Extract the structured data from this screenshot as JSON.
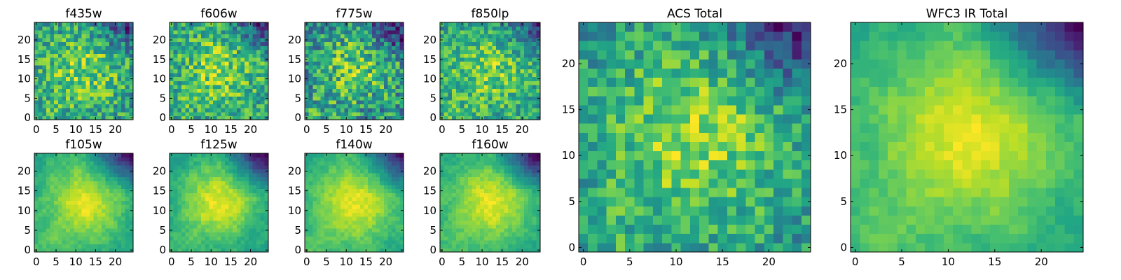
{
  "colormap": "viridis",
  "chart_data": [
    {
      "type": "heatmap",
      "title": "f435w",
      "image_size": 25,
      "x_ticks": [
        0,
        5,
        10,
        15,
        20
      ],
      "y_ticks": [
        0,
        5,
        10,
        15,
        20
      ],
      "xlim": [
        -0.5,
        24.5
      ],
      "ylim": [
        -0.5,
        24.5
      ],
      "texture": "noisy",
      "note_features": "uniform noisy field, scattered dark pixels"
    },
    {
      "type": "heatmap",
      "title": "f606w",
      "image_size": 25,
      "x_ticks": [
        0,
        5,
        10,
        15,
        20
      ],
      "y_ticks": [
        0,
        5,
        10,
        15,
        20
      ],
      "xlim": [
        -0.5,
        24.5
      ],
      "ylim": [
        -0.5,
        24.5
      ],
      "texture": "noisy"
    },
    {
      "type": "heatmap",
      "title": "f775w",
      "image_size": 25,
      "x_ticks": [
        0,
        5,
        10,
        15,
        20
      ],
      "y_ticks": [
        0,
        5,
        10,
        15,
        20
      ],
      "xlim": [
        -0.5,
        24.5
      ],
      "ylim": [
        -0.5,
        24.5
      ],
      "texture": "noisy"
    },
    {
      "type": "heatmap",
      "title": "f850lp",
      "image_size": 25,
      "x_ticks": [
        0,
        5,
        10,
        15,
        20
      ],
      "y_ticks": [
        0,
        5,
        10,
        15,
        20
      ],
      "xlim": [
        -0.5,
        24.5
      ],
      "ylim": [
        -0.5,
        24.5
      ],
      "texture": "noisy"
    },
    {
      "type": "heatmap",
      "title": "f105w",
      "image_size": 25,
      "x_ticks": [
        0,
        5,
        10,
        15,
        20
      ],
      "y_ticks": [
        0,
        5,
        10,
        15,
        20
      ],
      "xlim": [
        -0.5,
        24.5
      ],
      "ylim": [
        -0.5,
        24.5
      ],
      "texture": "smooth"
    },
    {
      "type": "heatmap",
      "title": "f125w",
      "image_size": 25,
      "x_ticks": [
        0,
        5,
        10,
        15,
        20
      ],
      "y_ticks": [
        0,
        5,
        10,
        15,
        20
      ],
      "xlim": [
        -0.5,
        24.5
      ],
      "ylim": [
        -0.5,
        24.5
      ],
      "texture": "smooth"
    },
    {
      "type": "heatmap",
      "title": "f140w",
      "image_size": 25,
      "x_ticks": [
        0,
        5,
        10,
        15,
        20
      ],
      "y_ticks": [
        0,
        5,
        10,
        15,
        20
      ],
      "xlim": [
        -0.5,
        24.5
      ],
      "ylim": [
        -0.5,
        24.5
      ],
      "texture": "smooth"
    },
    {
      "type": "heatmap",
      "title": "f160w",
      "image_size": 25,
      "x_ticks": [
        0,
        5,
        10,
        15,
        20
      ],
      "y_ticks": [
        0,
        5,
        10,
        15,
        20
      ],
      "xlim": [
        -0.5,
        24.5
      ],
      "ylim": [
        -0.5,
        24.5
      ],
      "texture": "smooth"
    },
    {
      "type": "heatmap",
      "title": "ACS Total",
      "image_size": 25,
      "x_ticks": [
        0,
        5,
        10,
        15,
        20
      ],
      "y_ticks": [
        0,
        5,
        10,
        15,
        20
      ],
      "xlim": [
        -0.5,
        24.5
      ],
      "ylim": [
        -0.5,
        24.5
      ],
      "texture": "medium"
    },
    {
      "type": "heatmap",
      "title": "WFC3 IR Total",
      "image_size": 25,
      "x_ticks": [
        0,
        5,
        10,
        15,
        20
      ],
      "y_ticks": [
        0,
        5,
        10,
        15,
        20
      ],
      "xlim": [
        -0.5,
        24.5
      ],
      "ylim": [
        -0.5,
        24.5
      ],
      "texture": "smooth"
    }
  ]
}
